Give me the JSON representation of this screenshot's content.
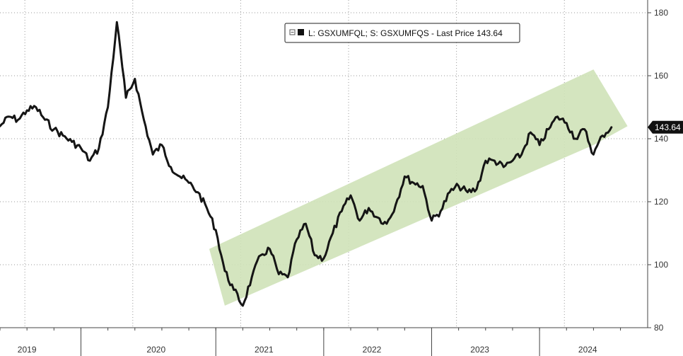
{
  "chart_data": {
    "type": "line",
    "title": "",
    "xlabel": "",
    "ylabel": "",
    "ylim": [
      80,
      183
    ],
    "x_range": [
      "2018-10",
      "2024-09"
    ],
    "yticks": [
      80,
      100,
      120,
      140,
      160,
      180
    ],
    "year_labels": [
      "2019",
      "2020",
      "2021",
      "2022",
      "2023",
      "2024"
    ],
    "legend": {
      "text": "L: GSXUMFQL; S: GSXUMFQS - Last Price 143.64",
      "placement": "top-center"
    },
    "last_price_label": "143.64",
    "grid": true,
    "colors": {
      "line": "#151515",
      "channel": "#cfe2b8",
      "tag": "#111111"
    },
    "channel": {
      "lower": [
        [
          "2020-11",
          87
        ],
        [
          "2024-04",
          138
        ]
      ],
      "upper": [
        [
          "2020-11",
          105
        ],
        [
          "2024-04",
          162
        ]
      ],
      "end": [
        "2024-07",
        144
      ]
    },
    "series": [
      {
        "values": [
          [
            "2018-10",
            144
          ],
          [
            "2018-11",
            147
          ],
          [
            "2018-12",
            146
          ],
          [
            "2019-01",
            149
          ],
          [
            "2019-02",
            150
          ],
          [
            "2019-03",
            146
          ],
          [
            "2019-04",
            143
          ],
          [
            "2019-05",
            141
          ],
          [
            "2019-06",
            139
          ],
          [
            "2019-07",
            137
          ],
          [
            "2019-08",
            133
          ],
          [
            "2019-09",
            137
          ],
          [
            "2019-10",
            150
          ],
          [
            "2019-11",
            177
          ],
          [
            "2019-12",
            153
          ],
          [
            "2020-01",
            159
          ],
          [
            "2020-02",
            146
          ],
          [
            "2020-03",
            135
          ],
          [
            "2020-04",
            138
          ],
          [
            "2020-05",
            131
          ],
          [
            "2020-06",
            128
          ],
          [
            "2020-07",
            126
          ],
          [
            "2020-08",
            123
          ],
          [
            "2020-09",
            118
          ],
          [
            "2020-10",
            111
          ],
          [
            "2020-11",
            98
          ],
          [
            "2020-12",
            92
          ],
          [
            "2021-01",
            87
          ],
          [
            "2021-02",
            96
          ],
          [
            "2021-03",
            103
          ],
          [
            "2021-04",
            105
          ],
          [
            "2021-05",
            97
          ],
          [
            "2021-06",
            96
          ],
          [
            "2021-07",
            108
          ],
          [
            "2021-08",
            113
          ],
          [
            "2021-09",
            103
          ],
          [
            "2021-10",
            102
          ],
          [
            "2021-11",
            110
          ],
          [
            "2021-12",
            117
          ],
          [
            "2022-01",
            122
          ],
          [
            "2022-02",
            114
          ],
          [
            "2022-03",
            118
          ],
          [
            "2022-04",
            115
          ],
          [
            "2022-05",
            113
          ],
          [
            "2022-06",
            119
          ],
          [
            "2022-07",
            128
          ],
          [
            "2022-08",
            126
          ],
          [
            "2022-09",
            125
          ],
          [
            "2022-10",
            114
          ],
          [
            "2022-11",
            117
          ],
          [
            "2022-12",
            123
          ],
          [
            "2023-01",
            125
          ],
          [
            "2023-02",
            123
          ],
          [
            "2023-03",
            124
          ],
          [
            "2023-04",
            133
          ],
          [
            "2023-05",
            133
          ],
          [
            "2023-06",
            131
          ],
          [
            "2023-07",
            133
          ],
          [
            "2023-08",
            135
          ],
          [
            "2023-09",
            142
          ],
          [
            "2023-10",
            138
          ],
          [
            "2023-11",
            143
          ],
          [
            "2023-12",
            147
          ],
          [
            "2024-01",
            145
          ],
          [
            "2024-02",
            140
          ],
          [
            "2024-03",
            143
          ],
          [
            "2024-04",
            135
          ],
          [
            "2024-05",
            141
          ],
          [
            "2024-06",
            143.64
          ]
        ]
      }
    ]
  }
}
